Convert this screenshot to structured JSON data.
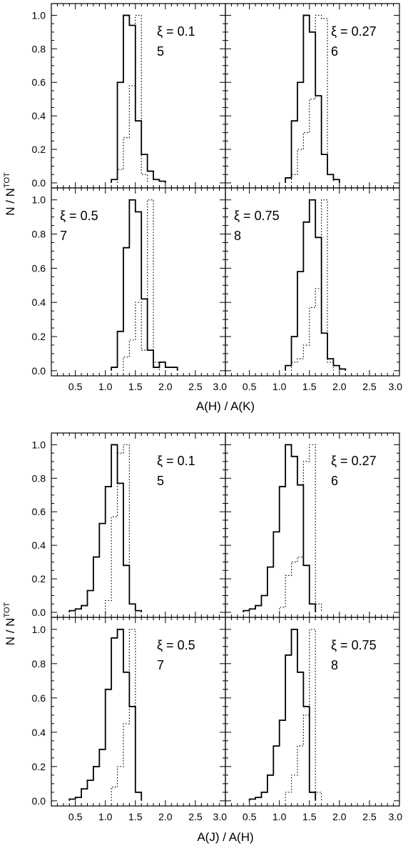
{
  "figure_blocks": [
    {
      "ylabel": "N / N",
      "ylabel_sup": "TOT",
      "xlabel": "A(H) / A(K)",
      "panels": [
        {
          "label_line1": "ξ = 0.1",
          "label_line2": "5"
        },
        {
          "label_line1": "ξ = 0.27",
          "label_line2": "6"
        },
        {
          "label_line1": "ξ = 0.5",
          "label_line2": "7"
        },
        {
          "label_line1": "ξ = 0.75",
          "label_line2": "8"
        }
      ]
    },
    {
      "ylabel": "N / N",
      "ylabel_sup": "TOT",
      "xlabel": "A(J) / A(H)",
      "panels": [
        {
          "label_line1": "ξ = 0.1",
          "label_line2": "5"
        },
        {
          "label_line1": "ξ = 0.27",
          "label_line2": "6"
        },
        {
          "label_line1": "ξ = 0.5",
          "label_line2": "7"
        },
        {
          "label_line1": "ξ = 0.75",
          "label_line2": "8"
        }
      ]
    }
  ],
  "axis_ticks": {
    "x_left": [
      "0.5",
      "1.0",
      "1.5",
      "2.0",
      "2.5",
      "3.0"
    ],
    "x_right": [
      "0.5",
      "1.0",
      "1.5",
      "2.0",
      "2.5",
      "3.0"
    ],
    "y": [
      "0.0",
      "0.2",
      "0.4",
      "0.6",
      "0.8",
      "1.0"
    ]
  },
  "chart_data": [
    {
      "type": "histogram",
      "xlabel": "A(H) / A(K)",
      "ylabel": "N / N^TOT",
      "xlim": [
        0.1,
        3.0
      ],
      "ylim": [
        -0.03,
        1.07
      ],
      "bin_width": 0.1,
      "panels": [
        {
          "label": "ξ = 0.1 5",
          "solid": {
            "x_start": 1.1,
            "values": [
              0.02,
              0.6,
              1.0,
              0.94,
              0.37,
              0.17,
              0.07,
              0.02,
              0.01
            ]
          },
          "dotted": {
            "x_start": 1.2,
            "values": [
              0.08,
              0.27,
              0.58,
              1.0,
              0.05
            ]
          }
        },
        {
          "label": "ξ = 0.27 6",
          "solid": {
            "x_start": 1.1,
            "values": [
              0.03,
              0.37,
              0.6,
              1.0,
              0.9,
              0.52,
              0.17,
              0.05,
              0.02
            ]
          },
          "dotted": {
            "x_start": 1.2,
            "values": [
              0.05,
              0.2,
              0.3,
              0.5,
              1.0,
              0.98,
              0.05
            ]
          }
        },
        {
          "label": "ξ = 0.5 7",
          "solid": {
            "x_start": 1.1,
            "values": [
              0.02,
              0.23,
              0.72,
              1.0,
              0.93,
              0.42,
              0.12,
              0.02,
              0.05,
              0.02,
              0.02
            ]
          },
          "dotted": {
            "x_start": 1.3,
            "values": [
              0.08,
              0.18,
              0.4,
              0.12,
              1.0,
              0.05
            ]
          }
        },
        {
          "label": "ξ = 0.75 8",
          "solid": {
            "x_start": 1.1,
            "values": [
              0.03,
              0.2,
              0.58,
              0.87,
              1.0,
              0.78,
              0.22,
              0.07,
              0.03,
              0.01
            ]
          },
          "dotted": {
            "x_start": 1.2,
            "values": [
              0.05,
              0.07,
              0.15,
              0.37,
              0.48,
              1.0,
              0.05
            ]
          }
        }
      ]
    },
    {
      "type": "histogram",
      "xlabel": "A(J) / A(H)",
      "ylabel": "N / N^TOT",
      "xlim": [
        0.1,
        3.0
      ],
      "ylim": [
        -0.03,
        1.07
      ],
      "bin_width": 0.1,
      "panels": [
        {
          "label": "ξ = 0.1 5",
          "solid": {
            "x_start": 0.4,
            "values": [
              0.01,
              0.02,
              0.04,
              0.13,
              0.33,
              0.53,
              0.75,
              1.0,
              0.77,
              0.28,
              0.05,
              0.01
            ]
          },
          "dotted": {
            "x_start": 1.0,
            "values": [
              0.07,
              0.57,
              0.95,
              1.0,
              0.05
            ]
          }
        },
        {
          "label": "ξ = 0.27 6",
          "solid": {
            "x_start": 0.4,
            "values": [
              0.01,
              0.02,
              0.04,
              0.1,
              0.27,
              0.48,
              0.75,
              1.0,
              0.93,
              0.76,
              0.28,
              0.05
            ]
          },
          "dotted": {
            "x_start": 1.0,
            "values": [
              0.03,
              0.22,
              0.3,
              0.33,
              0.9,
              1.0,
              0.05
            ]
          }
        },
        {
          "label": "ξ = 0.5 7",
          "solid": {
            "x_start": 0.4,
            "values": [
              0.01,
              0.02,
              0.07,
              0.12,
              0.2,
              0.3,
              0.65,
              0.95,
              1.0,
              0.75,
              0.55,
              0.05
            ]
          },
          "dotted": {
            "x_start": 1.1,
            "values": [
              0.08,
              0.2,
              0.45,
              1.0,
              0.05
            ]
          }
        },
        {
          "label": "ξ = 0.75 8",
          "solid": {
            "x_start": 0.5,
            "values": [
              0.01,
              0.02,
              0.05,
              0.15,
              0.32,
              0.47,
              0.85,
              1.0,
              0.75,
              0.55,
              0.05
            ]
          },
          "dotted": {
            "x_start": 1.1,
            "values": [
              0.05,
              0.15,
              0.32,
              0.5,
              1.0,
              0.05
            ]
          }
        }
      ]
    }
  ]
}
